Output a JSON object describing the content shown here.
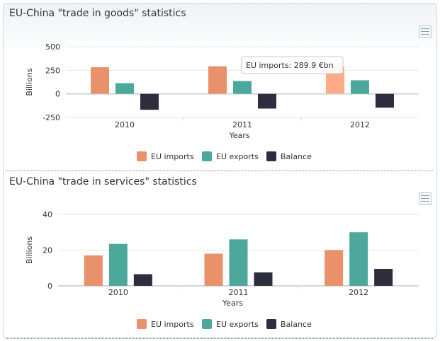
{
  "colors": {
    "imports": "#e8916a",
    "exports": "#4da89c",
    "balance": "#2e2d3d",
    "hover_imports": "#ffac86",
    "grid": "#e6e6e6",
    "axis": "#cfd6dc",
    "text": "#333333"
  },
  "icons": {
    "export": "table-export-icon"
  },
  "chart_data": [
    {
      "type": "bar",
      "title": "EU-China \"trade in goods\" statistics",
      "xlabel": "Years",
      "ylabel": "Billions",
      "ylim": [
        -250,
        500
      ],
      "yticks": [
        500,
        250,
        0,
        -250
      ],
      "ytick_labels": [
        "500",
        "250",
        "0",
        "-250"
      ],
      "categories": [
        "2010",
        "2011",
        "2012"
      ],
      "series": [
        {
          "name": "EU imports",
          "values": [
            282,
            292,
            289.9
          ]
        },
        {
          "name": "EU exports",
          "values": [
            113,
            136,
            144
          ]
        },
        {
          "name": "Balance",
          "values": [
            -169,
            -156,
            -146
          ]
        }
      ],
      "legend_position": "bottom",
      "grid": true,
      "tooltip": {
        "text": "EU imports: 289.9 €bn",
        "series": 0,
        "category": 2
      }
    },
    {
      "type": "bar",
      "title": "EU-China \"trade in services\" statistics",
      "xlabel": "Years",
      "ylabel": "Billions",
      "ylim": [
        0,
        40
      ],
      "yticks": [
        40,
        20,
        0
      ],
      "ytick_labels": [
        "40",
        "20",
        "0"
      ],
      "categories": [
        "2010",
        "2011",
        "2012"
      ],
      "series": [
        {
          "name": "EU imports",
          "values": [
            17,
            18,
            20
          ]
        },
        {
          "name": "EU exports",
          "values": [
            23.5,
            26,
            30
          ]
        },
        {
          "name": "Balance",
          "values": [
            6.5,
            7.5,
            9.5
          ]
        }
      ],
      "legend_position": "bottom",
      "grid": true
    }
  ]
}
